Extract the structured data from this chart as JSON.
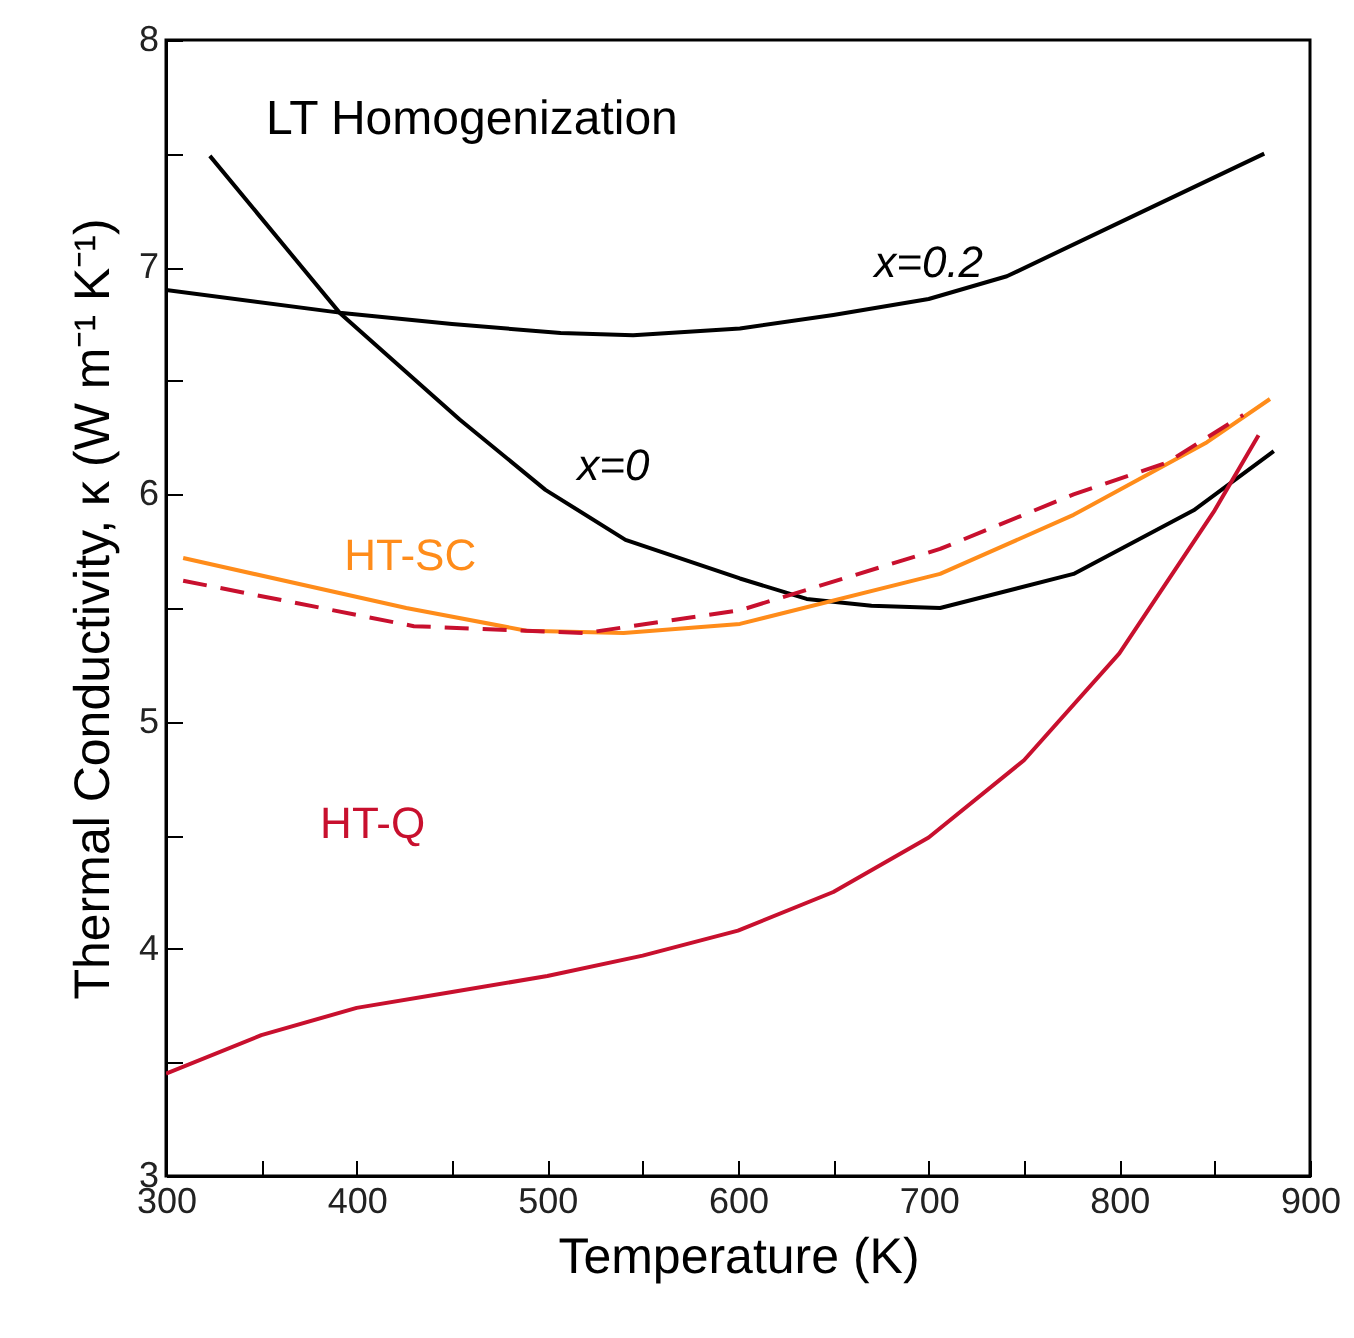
{
  "chart_data": {
    "type": "line",
    "xlabel": "Temperature (K)",
    "ylabel": "Thermal Conductivity, κ (W m⁻¹ K⁻¹)",
    "annotations": [
      "LT Homogenization"
    ],
    "xlim": [
      300,
      900
    ],
    "xticks": [
      300,
      {
        "value": 350,
        "label": null
      },
      400,
      {
        "value": 450,
        "label": null
      },
      500,
      {
        "value": 550,
        "label": null
      },
      600,
      {
        "value": 650,
        "label": null
      },
      700,
      {
        "value": 750,
        "label": null
      },
      800,
      {
        "value": 850,
        "label": null
      },
      900
    ],
    "ylim": [
      3,
      8
    ],
    "yticks": [
      3,
      {
        "value": 3.5,
        "label": null
      },
      4,
      {
        "value": 4.5,
        "label": null
      },
      5,
      {
        "value": 5.5,
        "label": null
      },
      6,
      {
        "value": 6.5,
        "label": null
      },
      7,
      {
        "value": 7.5,
        "label": null
      },
      8
    ],
    "series": [
      {
        "name": "x=0.2",
        "color": "#000000",
        "x": [
          300,
          391,
          450,
          507,
          545,
          601,
          650,
          700,
          741,
          811,
          876
        ],
        "values": [
          6.9,
          6.8,
          6.75,
          6.71,
          6.7,
          6.73,
          6.79,
          6.86,
          6.96,
          7.24,
          7.5
        ]
      },
      {
        "name": "x=0",
        "color": "#000000",
        "x": [
          323,
          391,
          454,
          499,
          541,
          601,
          636,
          670,
          706,
          776,
          839,
          881
        ],
        "values": [
          7.49,
          6.8,
          6.33,
          6.02,
          5.8,
          5.63,
          5.54,
          5.51,
          5.5,
          5.65,
          5.93,
          6.19
        ]
      },
      {
        "name": "HT-SC",
        "color": "#ff8c1a",
        "x": [
          309,
          426,
          489,
          540,
          601,
          706,
          776,
          846,
          879
        ],
        "values": [
          5.72,
          5.5,
          5.4,
          5.39,
          5.43,
          5.65,
          5.91,
          6.23,
          6.42
        ]
      },
      {
        "color": "#c8102e",
        "line_style": "dashed",
        "x": [
          309,
          430,
          489,
          520,
          601,
          706,
          776,
          825,
          865
        ],
        "values": [
          5.62,
          5.42,
          5.4,
          5.39,
          5.49,
          5.76,
          6.0,
          6.14,
          6.35
        ]
      },
      {
        "name": "HT-Q",
        "color": "#c8102e",
        "x": [
          300,
          350,
          400,
          450,
          500,
          550,
          600,
          650,
          700,
          750,
          800,
          850,
          873
        ],
        "values": [
          3.45,
          3.62,
          3.74,
          3.81,
          3.88,
          3.97,
          4.08,
          4.25,
          4.49,
          4.83,
          5.3,
          5.93,
          6.26
        ]
      }
    ]
  }
}
